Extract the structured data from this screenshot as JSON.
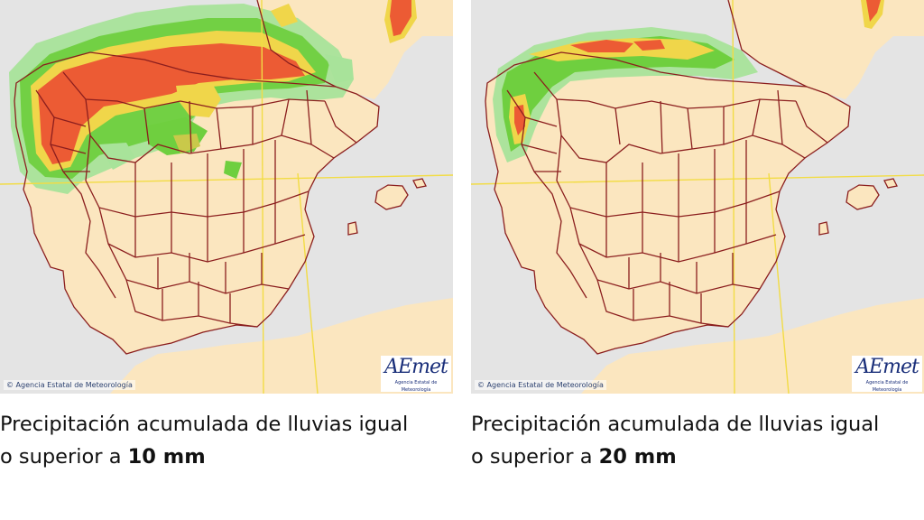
{
  "panels": [
    {
      "copyright": "© Agencia Estatal de Meteorología",
      "logo_word": "AEmet",
      "logo_sub": "Agencia Estatal de Meteorología",
      "caption_line1": "Precipitación acumulada de lluvias igual",
      "caption_prefix": "o superior a ",
      "caption_bold": "10 mm"
    },
    {
      "copyright": "© Agencia Estatal de Meteorología",
      "logo_word": "AEmet",
      "logo_sub": "Agencia Estatal de Meteorología",
      "caption_line1": "Precipitación acumulada de lluvias igual",
      "caption_prefix": "o superior a ",
      "caption_bold": "20 mm"
    }
  ],
  "colors": {
    "sea": "#e4e4e4",
    "land": "#fbe6bf",
    "border": "#8b1e1e",
    "graticule": "#f2dc45",
    "precip_low": "#a8e39a",
    "precip_mid": "#6fcf3f",
    "precip_high": "#f0d64a",
    "precip_max": "#ec5b34"
  }
}
